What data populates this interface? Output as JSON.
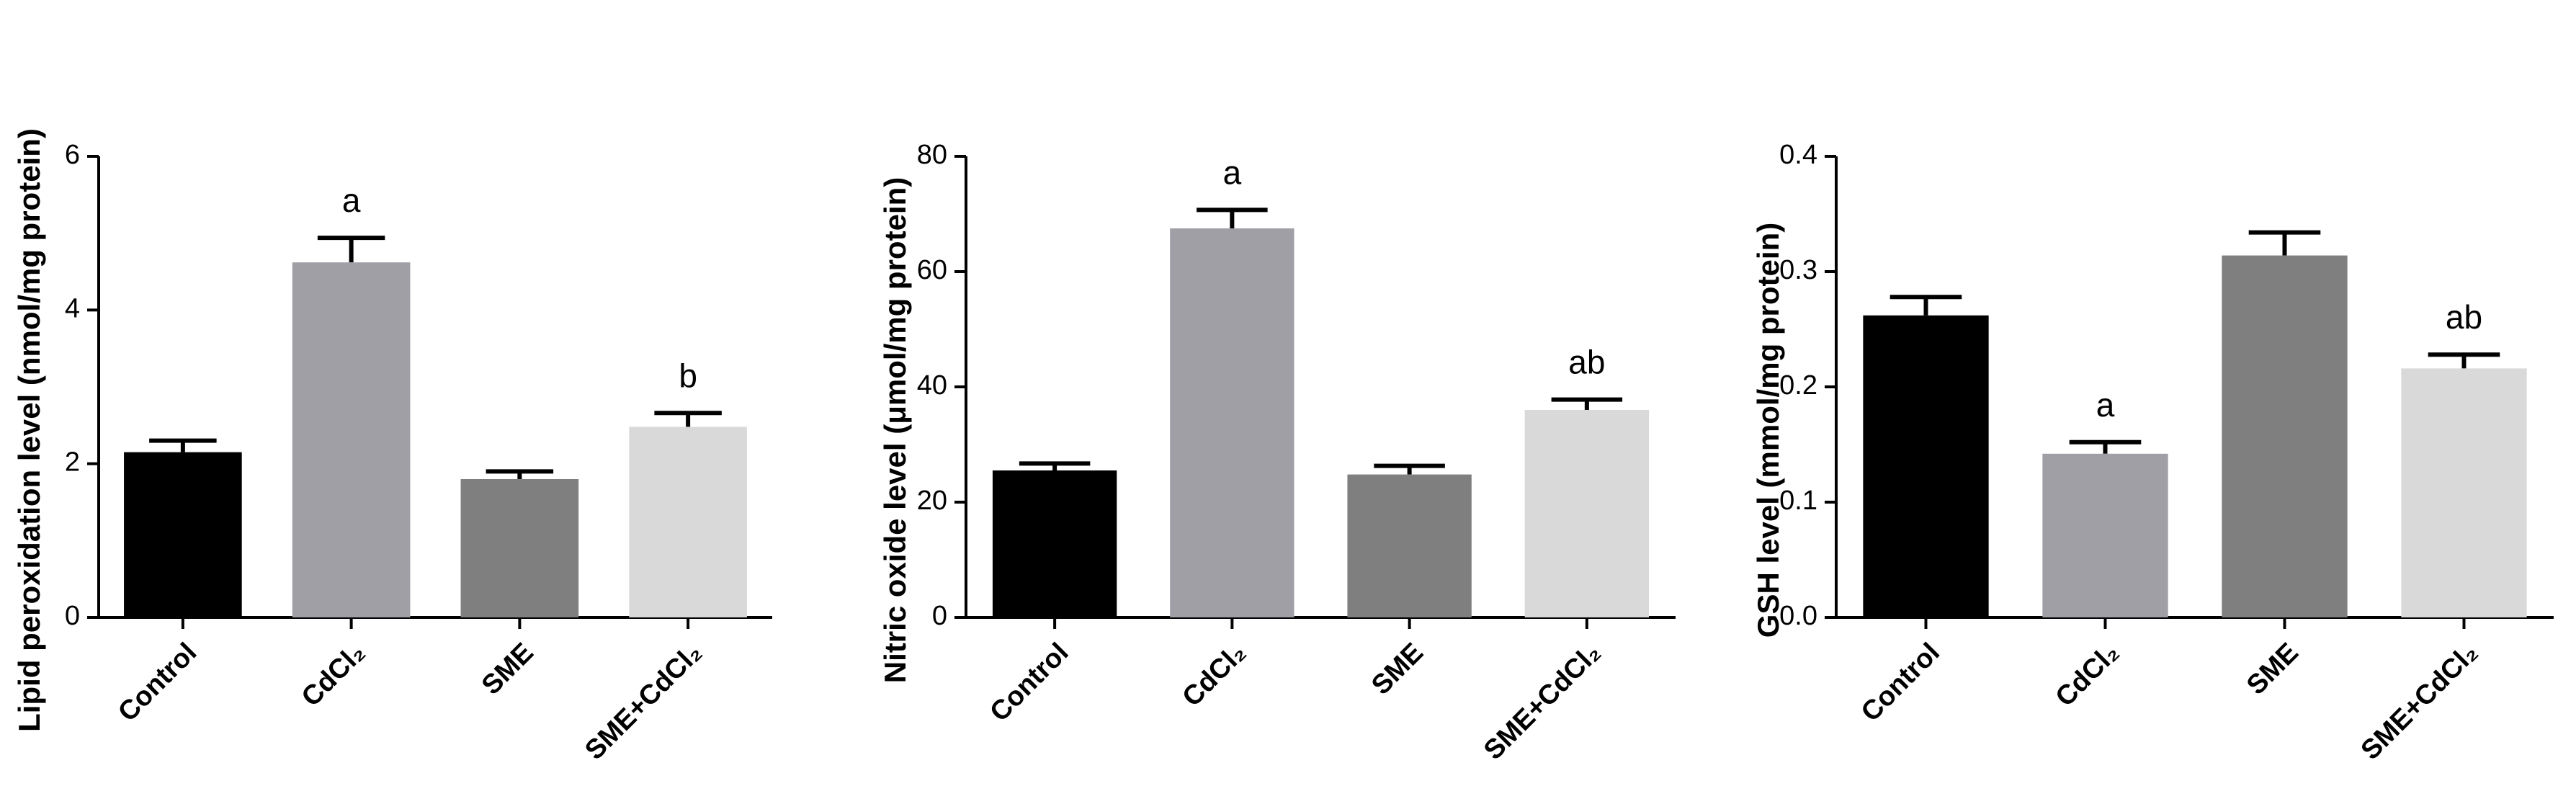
{
  "chart_data": [
    {
      "type": "bar",
      "y_label": "Lipid peroxidation level (nmol/mg protein)",
      "categories": [
        "Control",
        "CdCl₂",
        "SME",
        "SME+CdCl₂"
      ],
      "values": [
        2.15,
        4.62,
        1.8,
        2.48
      ],
      "errors": [
        0.15,
        0.32,
        0.1,
        0.18
      ],
      "letters": [
        null,
        "a",
        null,
        "b"
      ],
      "colors": [
        "#000000",
        "#a19fa6",
        "#7f7f7f",
        "#d9d9d9"
      ],
      "ylim": [
        0,
        6
      ],
      "yticks": [
        0,
        2,
        4,
        6
      ]
    },
    {
      "type": "bar",
      "y_label": "Nitric oxide level (μmol/mg protein)",
      "categories": [
        "Control",
        "CdCl₂",
        "SME",
        "SME+CdCl₂"
      ],
      "values": [
        25.5,
        67.5,
        24.8,
        36
      ],
      "errors": [
        1.2,
        3.2,
        1.5,
        1.8
      ],
      "letters": [
        null,
        "a",
        null,
        "ab"
      ],
      "colors": [
        "#000000",
        "#a19fa6",
        "#7f7f7f",
        "#d9d9d9"
      ],
      "ylim": [
        0,
        80
      ],
      "yticks": [
        0,
        20,
        40,
        60,
        80
      ]
    },
    {
      "type": "bar",
      "y_label": "GSH level (mmol/mg protein)",
      "categories": [
        "Control",
        "CdCl₂",
        "SME",
        "SME+CdCl₂"
      ],
      "values": [
        0.262,
        0.142,
        0.314,
        0.216
      ],
      "errors": [
        0.016,
        0.01,
        0.02,
        0.012
      ],
      "letters": [
        null,
        "a",
        null,
        "ab"
      ],
      "colors": [
        "#000000",
        "#a19fa6",
        "#7f7f7f",
        "#d9d9d9"
      ],
      "ylim": [
        0,
        0.4
      ],
      "yticks": [
        {
          "value": 0,
          "label": "0.0"
        },
        0.1,
        0.2,
        0.3,
        0.4
      ]
    }
  ]
}
